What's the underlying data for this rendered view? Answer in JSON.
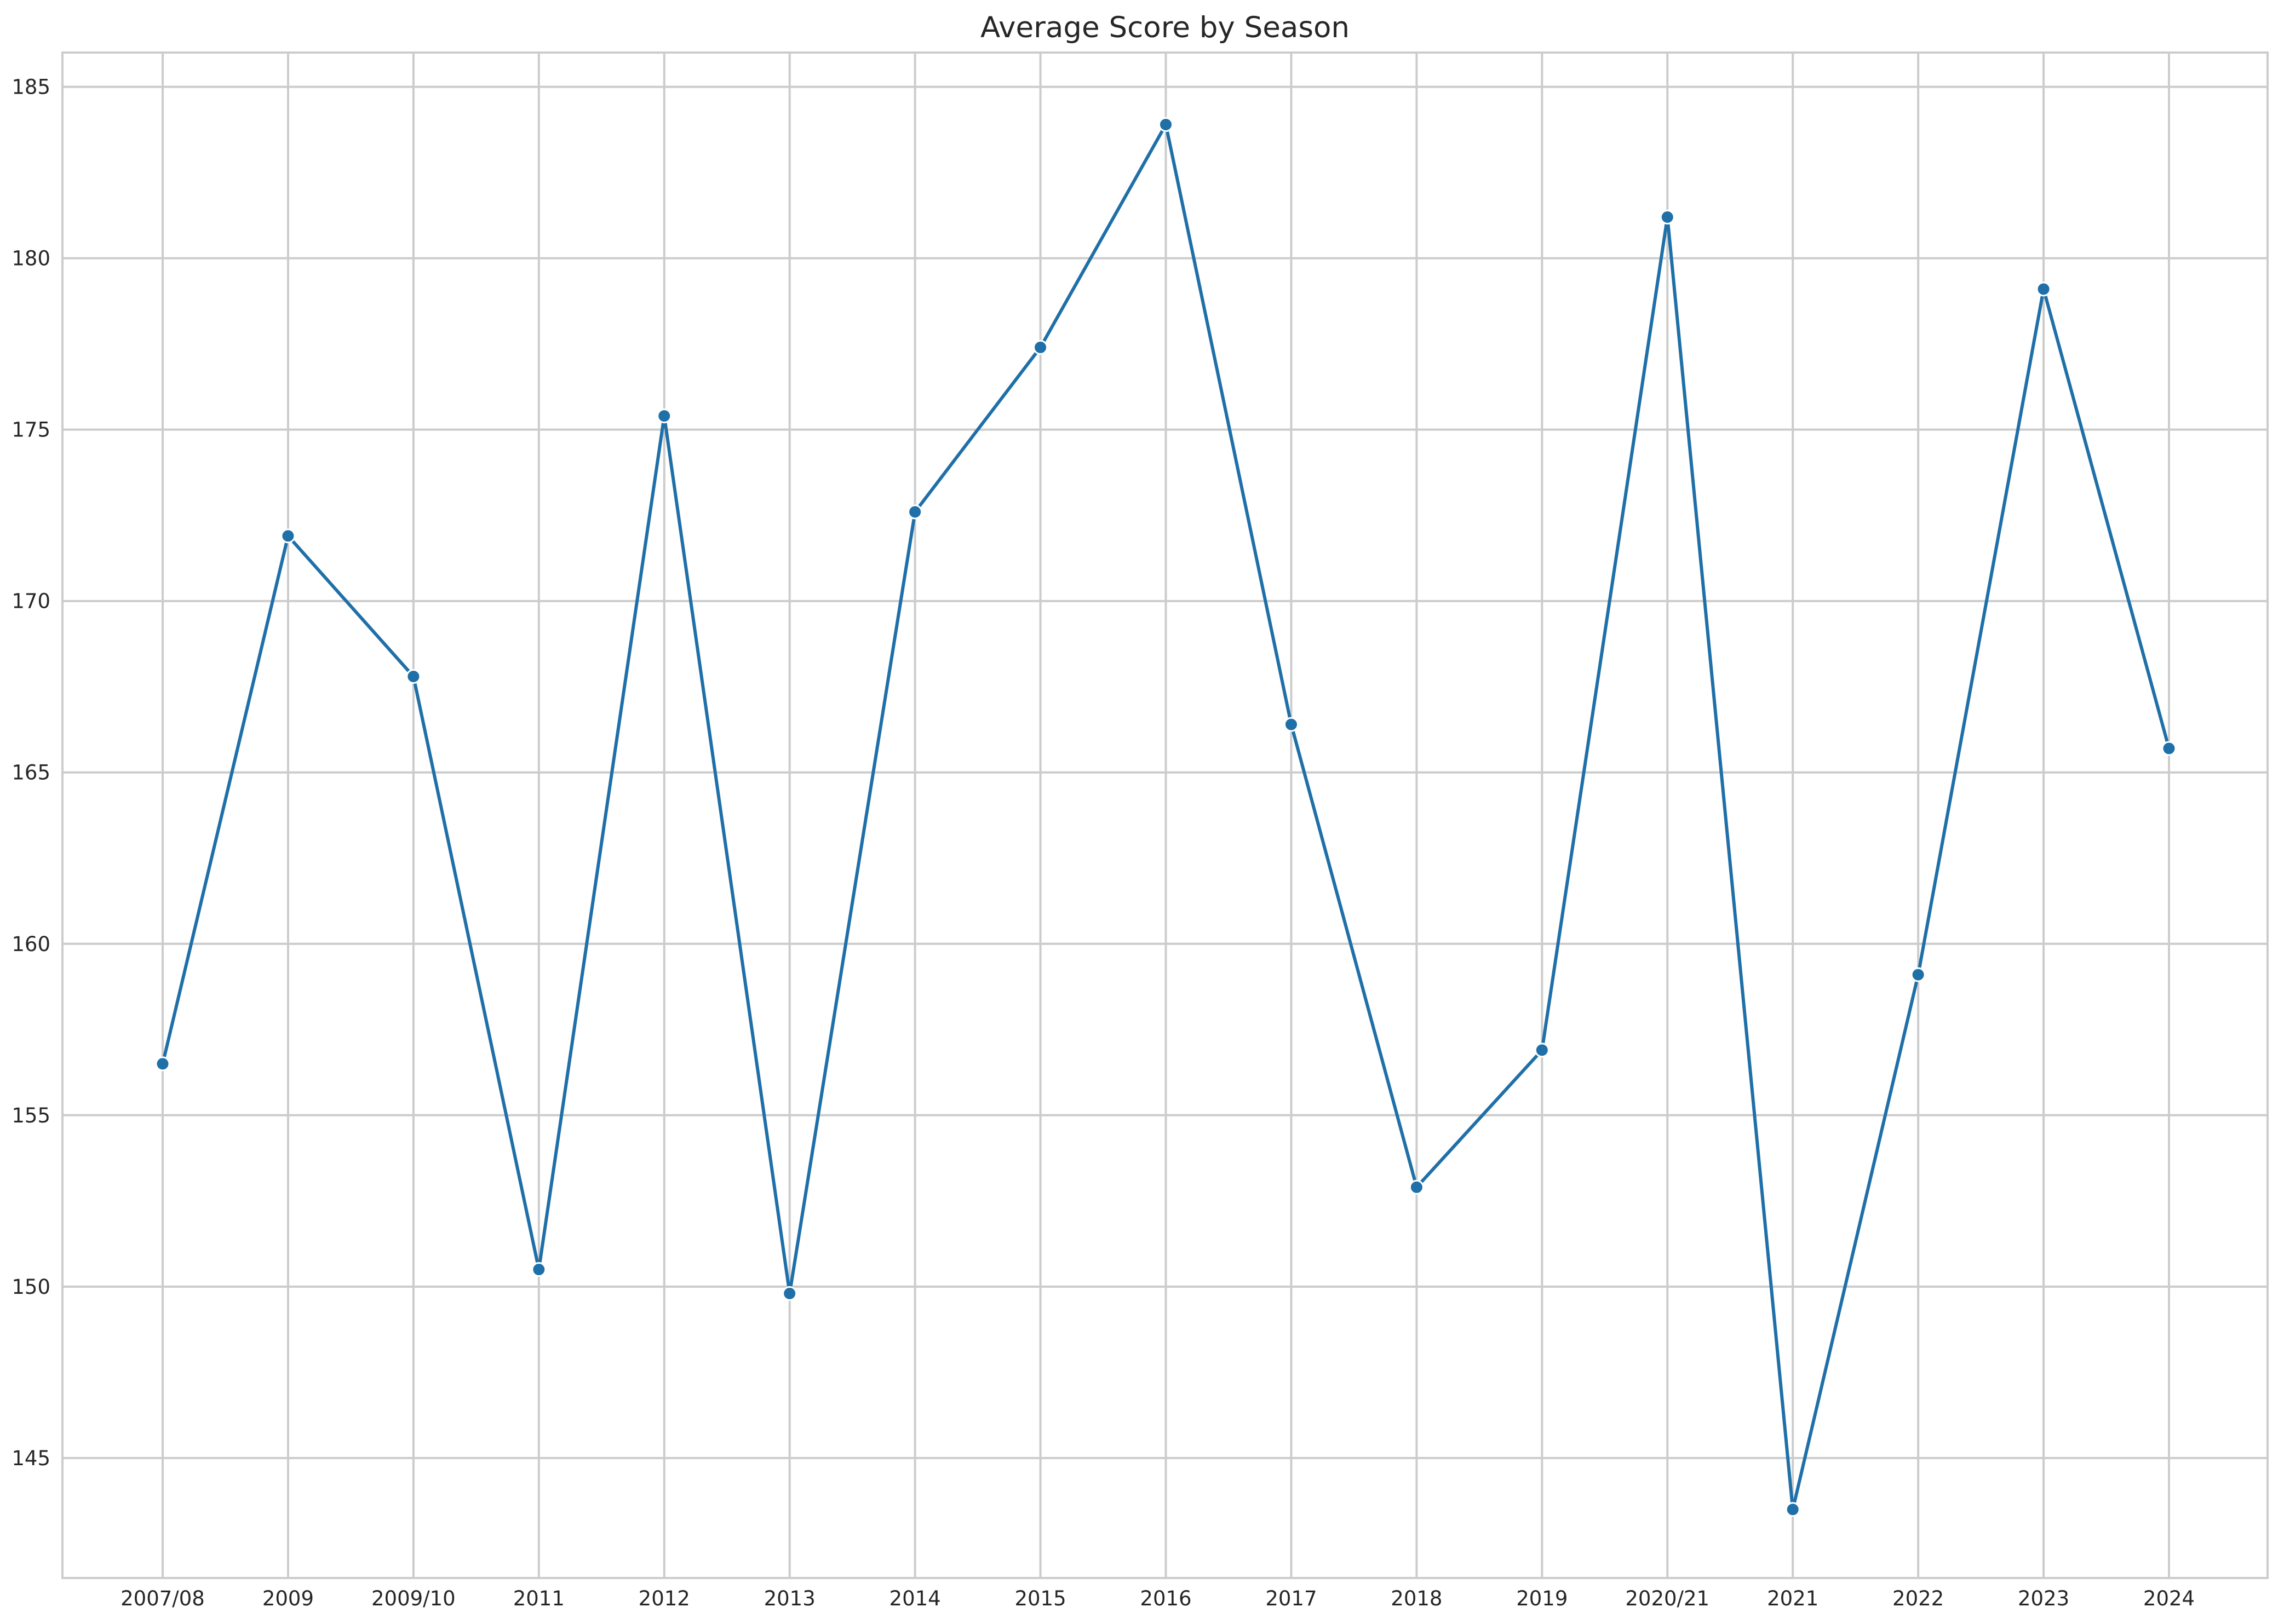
{
  "colors": {
    "series": "#1f6fa8",
    "grid": "#cccccc",
    "text": "#262626",
    "background": "#ffffff"
  },
  "chart_data": {
    "type": "line",
    "title": "Average Score by Season",
    "xlabel": "",
    "ylabel": "",
    "categories": [
      "2007/08",
      "2009",
      "2009/10",
      "2011",
      "2012",
      "2013",
      "2014",
      "2015",
      "2016",
      "2017",
      "2018",
      "2019",
      "2020/21",
      "2021",
      "2022",
      "2023",
      "2024"
    ],
    "series": [
      {
        "values": [
          156.5,
          171.9,
          167.8,
          150.5,
          175.4,
          149.8,
          172.6,
          177.4,
          183.9,
          166.4,
          152.9,
          156.9,
          181.2,
          143.5,
          159.1,
          179.1,
          165.7
        ],
        "marker": "circle"
      }
    ],
    "ylim": [
      141.5,
      186
    ],
    "yticks": [
      145,
      150,
      155,
      160,
      165,
      170,
      175,
      180,
      185
    ],
    "grid": true,
    "legend": "none"
  }
}
